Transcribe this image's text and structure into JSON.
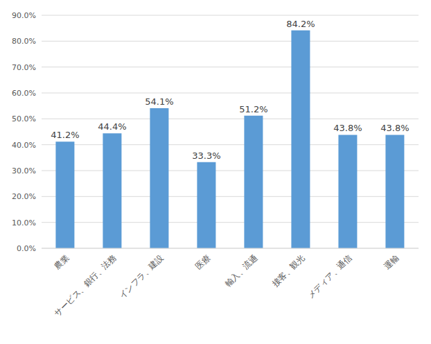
{
  "chart_data": {
    "type": "bar",
    "categories": [
      "農業",
      "サービス、銀行、法務",
      "インフラ、建設",
      "医療",
      "輸入、流通",
      "接客、観光",
      "メディア、通信",
      "運輸"
    ],
    "values": [
      41.2,
      44.4,
      54.1,
      33.3,
      51.2,
      84.2,
      43.8,
      43.8
    ],
    "value_labels": [
      "41.2%",
      "44.4%",
      "54.1%",
      "33.3%",
      "51.2%",
      "84.2%",
      "43.8%",
      "43.8%"
    ],
    "data_labels": true,
    "color": "#5b9bd5",
    "ylim": [
      0,
      90
    ],
    "yticks": [
      {
        "value": 0,
        "label": "0.0%"
      },
      {
        "value": 10,
        "label": "10.0%"
      },
      {
        "value": 20,
        "label": "20.0%"
      },
      {
        "value": 30,
        "label": "30.0%"
      },
      {
        "value": 40,
        "label": "40.0%"
      },
      {
        "value": 50,
        "label": "50.0%"
      },
      {
        "value": 60,
        "label": "60.0%"
      },
      {
        "value": 70,
        "label": "70.0%"
      },
      {
        "value": 80,
        "label": "80.0%"
      },
      {
        "value": 90,
        "label": "90.0%"
      }
    ],
    "grid": true
  }
}
